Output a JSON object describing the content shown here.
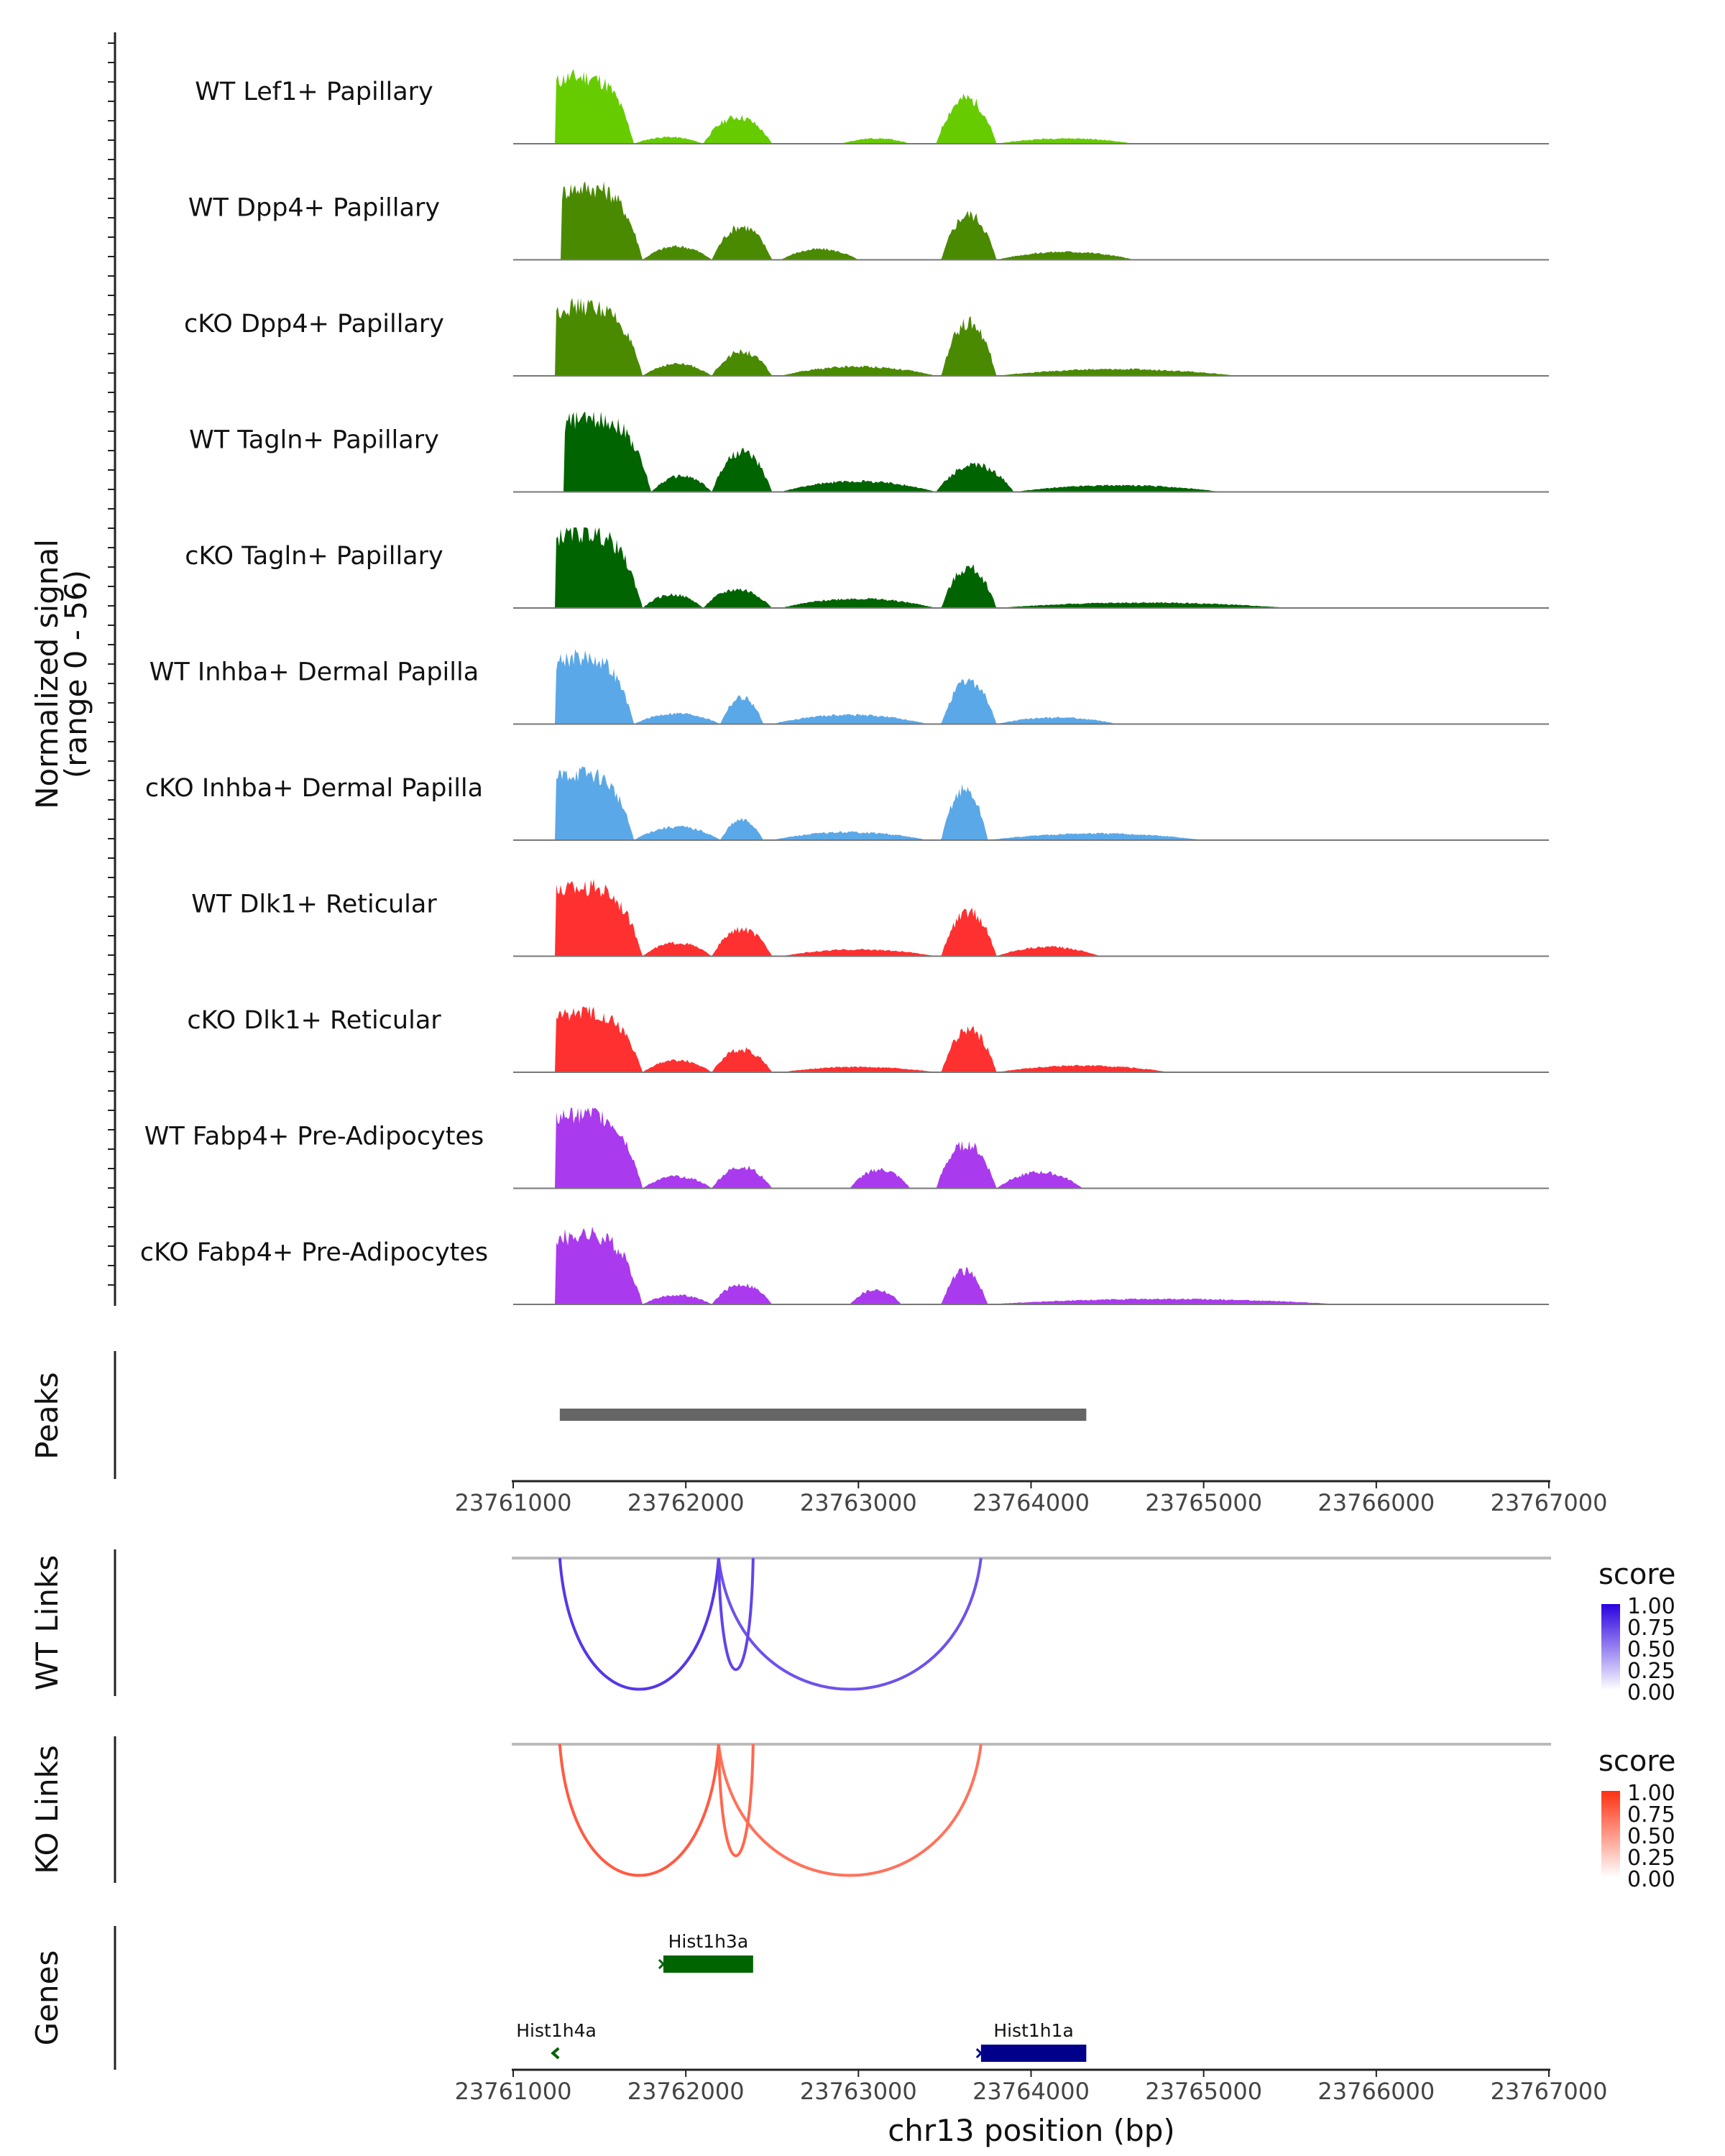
{
  "chart_data": {
    "type": "area",
    "title": "",
    "xlabel": "chr13 position (bp)",
    "ylabel": "Normalized signal\n(range 0 - 56)",
    "ylim": [
      0,
      56
    ],
    "xlim": [
      23761000,
      23767000
    ],
    "x_ticks": [
      "23761000",
      "23762000",
      "23763000",
      "23764000",
      "23765000",
      "23766000",
      "23767000"
    ],
    "x_tick_values": [
      23761000,
      23762000,
      23763000,
      23764000,
      23765000,
      23766000,
      23767000
    ],
    "tracks": [
      {
        "name": "WT Lef1+ Papillary",
        "color": "#66CC00",
        "peaks": [
          {
            "start": 23761250,
            "end": 23761700,
            "height": 50
          },
          {
            "start": 23762100,
            "end": 23762500,
            "height": 20
          },
          {
            "start": 23763450,
            "end": 23763800,
            "height": 34
          },
          {
            "start": 23762900,
            "end": 23763300,
            "height": 4
          },
          {
            "start": 23761700,
            "end": 23762100,
            "height": 5
          },
          {
            "start": 23763800,
            "end": 23764600,
            "height": 4
          }
        ]
      },
      {
        "name": "WT Dpp4+ Papillary",
        "color": "#4A8A00",
        "peaks": [
          {
            "start": 23761280,
            "end": 23761750,
            "height": 54
          },
          {
            "start": 23762150,
            "end": 23762500,
            "height": 25
          },
          {
            "start": 23763480,
            "end": 23763800,
            "height": 34
          },
          {
            "start": 23761750,
            "end": 23762150,
            "height": 10
          },
          {
            "start": 23762550,
            "end": 23763000,
            "height": 8
          },
          {
            "start": 23763800,
            "end": 23764600,
            "height": 6
          }
        ]
      },
      {
        "name": "cKO Dpp4+ Papillary",
        "color": "#4A8A00",
        "peaks": [
          {
            "start": 23761250,
            "end": 23761750,
            "height": 52
          },
          {
            "start": 23762150,
            "end": 23762500,
            "height": 18
          },
          {
            "start": 23763480,
            "end": 23763800,
            "height": 40
          },
          {
            "start": 23761750,
            "end": 23762150,
            "height": 9
          },
          {
            "start": 23762550,
            "end": 23763450,
            "height": 7
          },
          {
            "start": 23763800,
            "end": 23765200,
            "height": 5
          }
        ]
      },
      {
        "name": "WT Tagln+ Papillary",
        "color": "#006400",
        "peaks": [
          {
            "start": 23761300,
            "end": 23761800,
            "height": 55
          },
          {
            "start": 23762150,
            "end": 23762500,
            "height": 30
          },
          {
            "start": 23763450,
            "end": 23763900,
            "height": 20
          },
          {
            "start": 23761800,
            "end": 23762150,
            "height": 12
          },
          {
            "start": 23762550,
            "end": 23763450,
            "height": 8
          },
          {
            "start": 23763900,
            "end": 23765100,
            "height": 5
          }
        ]
      },
      {
        "name": "cKO Tagln+ Papillary",
        "color": "#006400",
        "peaks": [
          {
            "start": 23761250,
            "end": 23761750,
            "height": 56
          },
          {
            "start": 23762100,
            "end": 23762500,
            "height": 14
          },
          {
            "start": 23763480,
            "end": 23763800,
            "height": 30
          },
          {
            "start": 23761750,
            "end": 23762100,
            "height": 10
          },
          {
            "start": 23762550,
            "end": 23763450,
            "height": 7
          },
          {
            "start": 23763800,
            "end": 23765500,
            "height": 4
          }
        ]
      },
      {
        "name": "WT Inhba+ Dermal Papilla",
        "color": "#5BA8E8",
        "peaks": [
          {
            "start": 23761250,
            "end": 23761700,
            "height": 50
          },
          {
            "start": 23762200,
            "end": 23762450,
            "height": 20
          },
          {
            "start": 23763480,
            "end": 23763800,
            "height": 32
          },
          {
            "start": 23761700,
            "end": 23762200,
            "height": 8
          },
          {
            "start": 23762500,
            "end": 23763400,
            "height": 7
          },
          {
            "start": 23763800,
            "end": 23764500,
            "height": 5
          }
        ]
      },
      {
        "name": "cKO Inhba+ Dermal Papilla",
        "color": "#5BA8E8",
        "peaks": [
          {
            "start": 23761250,
            "end": 23761700,
            "height": 50
          },
          {
            "start": 23762200,
            "end": 23762450,
            "height": 15
          },
          {
            "start": 23763480,
            "end": 23763750,
            "height": 38
          },
          {
            "start": 23761700,
            "end": 23762200,
            "height": 10
          },
          {
            "start": 23762500,
            "end": 23763400,
            "height": 6
          },
          {
            "start": 23763750,
            "end": 23765000,
            "height": 5
          }
        ]
      },
      {
        "name": "WT Dlk1+ Reticular",
        "color": "#FF3030",
        "peaks": [
          {
            "start": 23761250,
            "end": 23761750,
            "height": 52
          },
          {
            "start": 23762150,
            "end": 23762500,
            "height": 20
          },
          {
            "start": 23763480,
            "end": 23763800,
            "height": 33
          },
          {
            "start": 23761750,
            "end": 23762150,
            "height": 10
          },
          {
            "start": 23762550,
            "end": 23763450,
            "height": 5
          },
          {
            "start": 23763800,
            "end": 23764400,
            "height": 7
          }
        ]
      },
      {
        "name": "cKO Dlk1+ Reticular",
        "color": "#FF3030",
        "peaks": [
          {
            "start": 23761250,
            "end": 23761750,
            "height": 45
          },
          {
            "start": 23762150,
            "end": 23762500,
            "height": 17
          },
          {
            "start": 23763480,
            "end": 23763800,
            "height": 32
          },
          {
            "start": 23761750,
            "end": 23762150,
            "height": 9
          },
          {
            "start": 23762550,
            "end": 23763450,
            "height": 4
          },
          {
            "start": 23763800,
            "end": 23764800,
            "height": 5
          }
        ]
      },
      {
        "name": "WT Fabp4+ Pre-Adipocytes",
        "color": "#AA3AEE",
        "peaks": [
          {
            "start": 23761250,
            "end": 23761750,
            "height": 56
          },
          {
            "start": 23762150,
            "end": 23762500,
            "height": 16
          },
          {
            "start": 23763450,
            "end": 23763800,
            "height": 33
          },
          {
            "start": 23762950,
            "end": 23763300,
            "height": 14
          },
          {
            "start": 23761750,
            "end": 23762150,
            "height": 9
          },
          {
            "start": 23763800,
            "end": 23764300,
            "height": 12
          }
        ]
      },
      {
        "name": "cKO Fabp4+ Pre-Adipocytes",
        "color": "#AA3AEE",
        "peaks": [
          {
            "start": 23761250,
            "end": 23761750,
            "height": 52
          },
          {
            "start": 23762150,
            "end": 23762500,
            "height": 15
          },
          {
            "start": 23763480,
            "end": 23763750,
            "height": 25
          },
          {
            "start": 23762950,
            "end": 23763250,
            "height": 11
          },
          {
            "start": 23761750,
            "end": 23762150,
            "height": 7
          },
          {
            "start": 23763750,
            "end": 23765800,
            "height": 4
          }
        ]
      }
    ],
    "peaks_track": {
      "label": "Peaks",
      "start": 23761270,
      "end": 23764320,
      "color": "#666666"
    },
    "links": {
      "wt_label": "WT Links",
      "ko_label": "KO Links",
      "arcs": [
        {
          "start": 23761270,
          "end": 23762190,
          "score": 0.8
        },
        {
          "start": 23762190,
          "end": 23763710,
          "score": 0.6
        },
        {
          "start": 23762190,
          "end": 23762390,
          "score": 0.7
        }
      ],
      "legend_title": "score",
      "legend_ticks": [
        "1.00",
        "0.75",
        "0.50",
        "0.25",
        "0.00"
      ],
      "wt_color": "#2B00E0",
      "ko_color": "#FF3010"
    },
    "genes": {
      "label": "Genes",
      "items": [
        {
          "name": "Hist1h3a",
          "start": 23761870,
          "end": 23762390,
          "strand": "+",
          "color": "#006400",
          "row": 1
        },
        {
          "name": "Hist1h4a",
          "start": 23761230,
          "end": 23761270,
          "strand": "-",
          "color": "#006400",
          "row": 2
        },
        {
          "name": "Hist1h1a",
          "start": 23763710,
          "end": 23764320,
          "strand": "+",
          "color": "#00008B",
          "row": 2
        }
      ]
    }
  }
}
